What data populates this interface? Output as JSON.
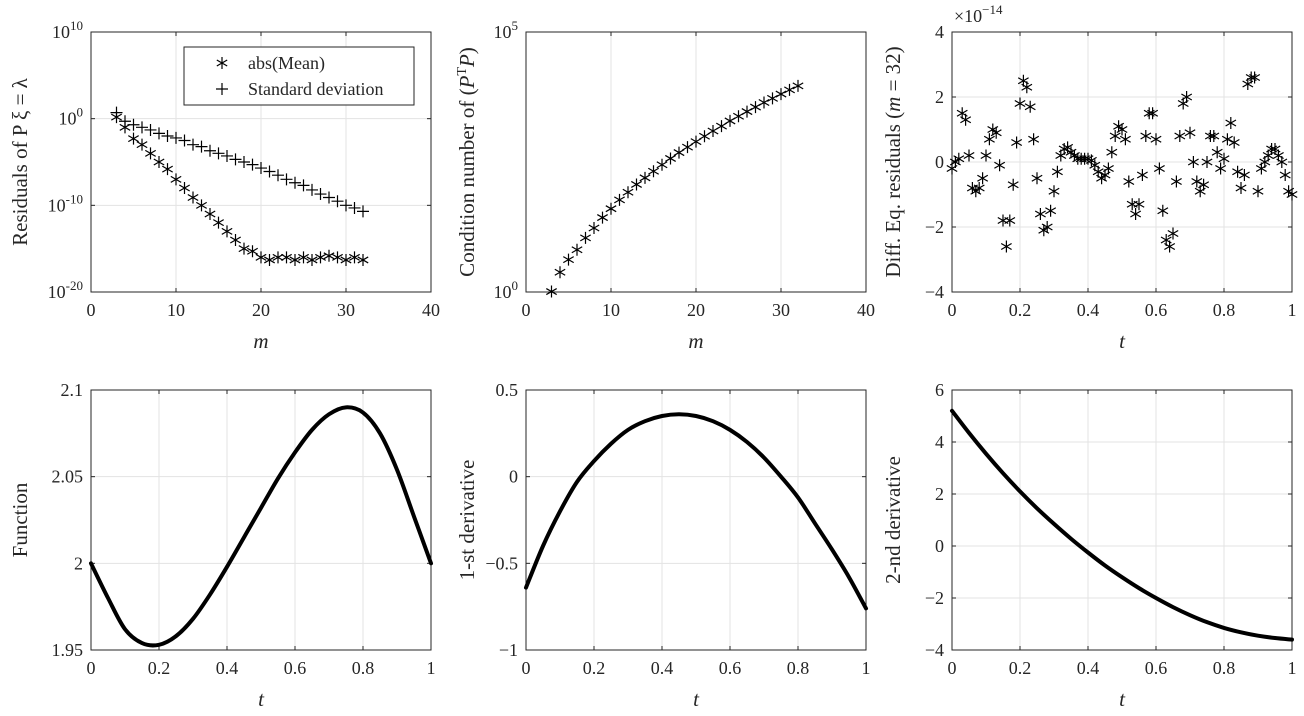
{
  "chart_data": [
    {
      "type": "scatter",
      "xlabel": "m",
      "ylabel": "Residuals of  P ξ = λ",
      "xlim": [
        0,
        40
      ],
      "ylim": [
        1e-20,
        10000000000.0
      ],
      "yscale": "log",
      "grid": true,
      "legend_position": "top-right",
      "xticks": [
        "0",
        "10",
        "20",
        "30",
        "40"
      ],
      "yticks": [
        "10^-20",
        "10^-10",
        "10^0",
        "10^10"
      ],
      "x": [
        3,
        4,
        5,
        6,
        7,
        8,
        9,
        10,
        11,
        12,
        13,
        14,
        15,
        16,
        17,
        18,
        19,
        20,
        21,
        22,
        23,
        24,
        25,
        26,
        27,
        28,
        29,
        30,
        31,
        32
      ],
      "series": [
        {
          "name": "abs(Mean)",
          "marker": "asterisk",
          "values": [
            1.5,
            0.1,
            0.005,
            0.001,
            0.0001,
            1e-05,
            1.5e-06,
            1e-07,
            1e-08,
            8e-10,
            1e-10,
            1e-11,
            1e-12,
            1e-13,
            1e-14,
            1e-15,
            5e-16,
            1e-16,
            5e-17,
            1e-16,
            1e-16,
            5e-17,
            1e-16,
            5e-17,
            1e-16,
            1.5e-16,
            1e-16,
            5e-17,
            1e-16,
            5e-17
          ]
        },
        {
          "name": "Standard deviation",
          "marker": "plus",
          "values": [
            5,
            0.5,
            0.2,
            0.1,
            0.05,
            0.02,
            0.01,
            0.006,
            0.003,
            0.001,
            0.0006,
            0.0002,
            0.0001,
            5e-05,
            2e-05,
            1e-05,
            5e-06,
            2e-06,
            8e-07,
            3e-07,
            1e-07,
            4e-08,
            2e-08,
            6e-09,
            2e-09,
            8e-10,
            3e-10,
            1e-10,
            5e-11,
            2e-11
          ]
        }
      ]
    },
    {
      "type": "scatter",
      "xlabel": "m",
      "ylabel": "Condition number of",
      "ylabel_math": {
        "open": "(",
        "base": "P",
        "sup": "T",
        "after": "P",
        "close": ")"
      },
      "xlim": [
        0,
        40
      ],
      "ylim": [
        1,
        100000
      ],
      "yscale": "log",
      "grid": true,
      "xticks": [
        "0",
        "10",
        "20",
        "30",
        "40"
      ],
      "yticks": [
        "10^0",
        "10^5"
      ],
      "x": [
        3,
        4,
        5,
        6,
        7,
        8,
        9,
        10,
        11,
        12,
        13,
        14,
        15,
        16,
        17,
        18,
        19,
        20,
        21,
        22,
        23,
        24,
        25,
        26,
        27,
        28,
        29,
        30,
        31,
        32
      ],
      "values": [
        1.02,
        2.4,
        4.2,
        6.5,
        11,
        17,
        27,
        40,
        59,
        83,
        117,
        157,
        210,
        280,
        370,
        480,
        610,
        780,
        990,
        1250,
        1550,
        1950,
        2400,
        2950,
        3600,
        4400,
        5300,
        6400,
        7700,
        9200
      ]
    },
    {
      "type": "scatter",
      "xlabel": "t",
      "ylabel": "Diff. Eq. residuals",
      "ylabel_math": {
        "var": "m",
        "eq": "= 32"
      },
      "xlim": [
        0,
        1
      ],
      "ylim": [
        -4,
        4
      ],
      "y_multiplier": "×10^-14",
      "grid": true,
      "xticks": [
        "0",
        "0.2",
        "0.4",
        "0.6",
        "0.8",
        "1"
      ],
      "yticks": [
        "-4",
        "-2",
        "0",
        "2",
        "4"
      ],
      "x": [
        0,
        0.01,
        0.02,
        0.03,
        0.04,
        0.05,
        0.06,
        0.07,
        0.08,
        0.09,
        0.1,
        0.11,
        0.12,
        0.13,
        0.14,
        0.15,
        0.16,
        0.17,
        0.18,
        0.19,
        0.2,
        0.21,
        0.22,
        0.23,
        0.24,
        0.25,
        0.26,
        0.27,
        0.28,
        0.29,
        0.3,
        0.31,
        0.32,
        0.33,
        0.34,
        0.35,
        0.36,
        0.37,
        0.38,
        0.39,
        0.4,
        0.41,
        0.42,
        0.43,
        0.44,
        0.45,
        0.46,
        0.47,
        0.48,
        0.49,
        0.5,
        0.51,
        0.52,
        0.53,
        0.54,
        0.55,
        0.56,
        0.57,
        0.58,
        0.59,
        0.6,
        0.61,
        0.62,
        0.63,
        0.64,
        0.65,
        0.66,
        0.67,
        0.68,
        0.69,
        0.7,
        0.71,
        0.72,
        0.73,
        0.74,
        0.75,
        0.76,
        0.77,
        0.78,
        0.79,
        0.8,
        0.81,
        0.82,
        0.83,
        0.84,
        0.85,
        0.86,
        0.87,
        0.88,
        0.89,
        0.9,
        0.91,
        0.92,
        0.93,
        0.94,
        0.95,
        0.96,
        0.97,
        0.98,
        0.99,
        1
      ],
      "values": [
        -0.2,
        0,
        0.1,
        1.5,
        1.3,
        0.2,
        -0.8,
        -0.9,
        -0.8,
        -0.5,
        0.2,
        0.7,
        1,
        0.9,
        -0.1,
        -1.8,
        -2.6,
        -1.8,
        -0.7,
        0.6,
        1.8,
        2.5,
        2.3,
        1.7,
        0.7,
        -0.5,
        -1.6,
        -2.1,
        -2,
        -1.5,
        -0.9,
        -0.3,
        0.2,
        0.4,
        0.45,
        0.3,
        0.2,
        0.1,
        0.1,
        0.1,
        0.1,
        0.05,
        -0.1,
        -0.3,
        -0.5,
        -0.4,
        -0.2,
        0.3,
        0.8,
        1.1,
        1,
        0.7,
        -0.6,
        -1.3,
        -1.6,
        -1.3,
        -0.4,
        0.8,
        1.5,
        1.5,
        0.7,
        -0.2,
        -1.5,
        -2.4,
        -2.6,
        -2.2,
        -0.6,
        0.8,
        1.8,
        2,
        0.9,
        0,
        -0.6,
        -0.9,
        -0.7,
        0,
        0.8,
        0.8,
        0.3,
        -0.2,
        0.1,
        0.7,
        1.2,
        0.6,
        -0.3,
        -0.8,
        -0.4,
        2.4,
        2.6,
        2.6,
        -0.9,
        -0.2,
        0,
        0.2,
        0.4,
        0.4,
        0.2,
        0,
        -0.4,
        -0.9,
        -1
      ]
    },
    {
      "type": "line",
      "xlabel": "t",
      "ylabel": "Function",
      "xlim": [
        0,
        1
      ],
      "ylim": [
        1.95,
        2.1
      ],
      "grid": true,
      "xticks": [
        "0",
        "0.2",
        "0.4",
        "0.6",
        "0.8",
        "1"
      ],
      "yticks": [
        "1.95",
        "2",
        "2.05",
        "2.1"
      ],
      "x": [
        0,
        0.05,
        0.1,
        0.15,
        0.2,
        0.25,
        0.3,
        0.35,
        0.4,
        0.45,
        0.5,
        0.55,
        0.6,
        0.65,
        0.7,
        0.75,
        0.8,
        0.85,
        0.9,
        0.95,
        1
      ],
      "values": [
        2.0,
        1.98,
        1.962,
        1.954,
        1.953,
        1.958,
        1.968,
        1.982,
        1.998,
        2.015,
        2.032,
        2.049,
        2.064,
        2.077,
        2.086,
        2.09,
        2.087,
        2.075,
        2.054,
        2.027,
        2.0
      ]
    },
    {
      "type": "line",
      "xlabel": "t",
      "ylabel": "1-st derivative",
      "xlim": [
        0,
        1
      ],
      "ylim": [
        -1,
        0.5
      ],
      "grid": true,
      "xticks": [
        "0",
        "0.2",
        "0.4",
        "0.6",
        "0.8",
        "1"
      ],
      "yticks": [
        "-1",
        "-0.5",
        "0",
        "0.5"
      ],
      "x": [
        0,
        0.05,
        0.1,
        0.15,
        0.2,
        0.25,
        0.3,
        0.35,
        0.4,
        0.45,
        0.5,
        0.55,
        0.6,
        0.65,
        0.7,
        0.75,
        0.8,
        0.85,
        0.9,
        0.95,
        1
      ],
      "values": [
        -0.64,
        -0.4,
        -0.2,
        -0.03,
        0.09,
        0.19,
        0.27,
        0.32,
        0.35,
        0.36,
        0.35,
        0.32,
        0.27,
        0.2,
        0.11,
        0.0,
        -0.12,
        -0.27,
        -0.42,
        -0.58,
        -0.76
      ]
    },
    {
      "type": "line",
      "xlabel": "t",
      "ylabel": "2-nd derivative",
      "xlim": [
        0,
        1
      ],
      "ylim": [
        -4,
        6
      ],
      "grid": true,
      "xticks": [
        "0",
        "0.2",
        "0.4",
        "0.6",
        "0.8",
        "1"
      ],
      "yticks": [
        "-4",
        "-2",
        "0",
        "2",
        "4",
        "6"
      ],
      "x": [
        0,
        0.05,
        0.1,
        0.15,
        0.2,
        0.25,
        0.3,
        0.35,
        0.4,
        0.45,
        0.5,
        0.55,
        0.6,
        0.65,
        0.7,
        0.75,
        0.8,
        0.85,
        0.9,
        0.95,
        1
      ],
      "values": [
        5.2,
        4.35,
        3.55,
        2.8,
        2.1,
        1.45,
        0.85,
        0.28,
        -0.25,
        -0.75,
        -1.2,
        -1.62,
        -2.0,
        -2.35,
        -2.66,
        -2.93,
        -3.15,
        -3.32,
        -3.45,
        -3.54,
        -3.6
      ]
    }
  ]
}
